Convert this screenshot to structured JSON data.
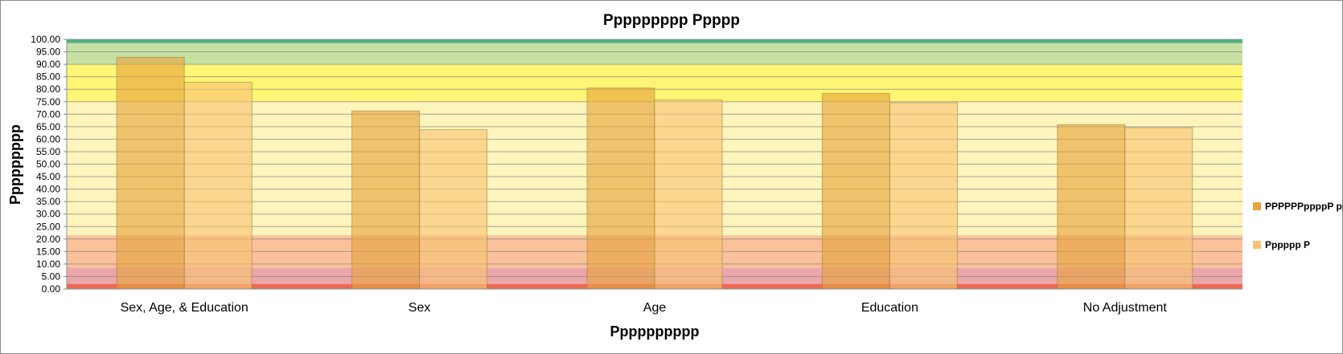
{
  "chart_data": {
    "type": "bar",
    "title": "Ppppppppp Ppppp",
    "xlabel": "Pppppppppp",
    "ylabel": "Ppppppppp",
    "categories": [
      "Sex, Age, & Education",
      "Sex",
      "Age",
      "Education",
      "No Adjustment"
    ],
    "series": [
      {
        "name": "PPPPPPppppP pp",
        "values": [
          92.8,
          71.3,
          80.5,
          78.3,
          65.8
        ],
        "color": "#e7a33c"
      },
      {
        "name": "Pppppp P",
        "values": [
          82.8,
          63.8,
          75.7,
          74.6,
          64.6
        ],
        "color": "#f7c372"
      }
    ],
    "ylim": [
      0,
      100
    ],
    "ytick_step": 5,
    "y_tick_labels": [
      "0.00",
      "5.00",
      "10.00",
      "15.00",
      "20.00",
      "25.00",
      "30.00",
      "35.00",
      "40.00",
      "45.00",
      "50.00",
      "55.00",
      "60.00",
      "65.00",
      "70.00",
      "75.00",
      "80.00",
      "85.00",
      "90.00",
      "95.00",
      "100.00"
    ],
    "grid": true,
    "legend_position": "right",
    "bands": [
      {
        "from": 0,
        "to": 2,
        "color": "#e8432a",
        "opacity": 0.8
      },
      {
        "from": 2,
        "to": 8.5,
        "color": "#e0767c",
        "opacity": 0.65
      },
      {
        "from": 8.5,
        "to": 21.5,
        "color": "#f7a064",
        "opacity": 0.65
      },
      {
        "from": 21.5,
        "to": 75,
        "color": "#fdf1a6",
        "opacity": 0.75
      },
      {
        "from": 75,
        "to": 90,
        "color": "#fff23a",
        "opacity": 0.7
      },
      {
        "from": 90,
        "to": 98.5,
        "color": "#b9da8c",
        "opacity": 0.8
      },
      {
        "from": 98.5,
        "to": 100,
        "color": "#3faa73",
        "opacity": 0.9
      }
    ],
    "colors": {
      "gridline": "#8a8a8a",
      "axis": "#8a8a8a",
      "bar_outline": "#9b7a3a"
    }
  }
}
